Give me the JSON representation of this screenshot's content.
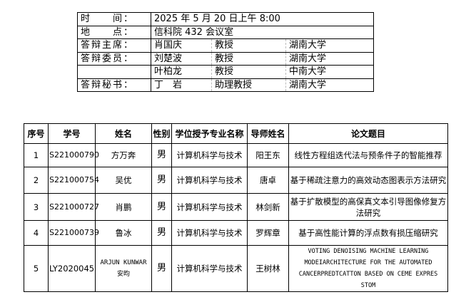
{
  "info": {
    "time_label": "时　　间：",
    "time_value": "2025 年 5 月 20 日上午 8:00",
    "place_label": "地　　点：",
    "place_value": "信科院 432 会议室",
    "chair_label": "答辩主席：",
    "committee_label": "答辩委员：",
    "secretary_label": "答辩秘书：",
    "people": [
      {
        "name": "肖国庆",
        "title": "教授",
        "org": "湖南大学"
      },
      {
        "name": "刘楚波",
        "title": "教授",
        "org": "湖南大学"
      },
      {
        "name": "叶柏龙",
        "title": "教授",
        "org": "中南大学"
      },
      {
        "name": "丁　岩",
        "title": "助理教授",
        "org": "湖南大学"
      }
    ]
  },
  "table": {
    "headers": [
      "序号",
      "学号",
      "姓名",
      "性别",
      "学位授予专业名称",
      "导师姓名",
      "论文题目"
    ],
    "rows": [
      [
        "1",
        "S221000790",
        "方万奔",
        "男",
        "计算机科学与技术",
        "阳王东",
        "线性方程组迭代法与预条件子的智能推荐"
      ],
      [
        "2",
        "S221000754",
        "吴优",
        "男",
        "计算机科学与技术",
        "唐卓",
        "基于稀疏注意力的高效动态图表示方法研究"
      ],
      [
        "3",
        "S221000727",
        "肖鹏",
        "男",
        "计算机科学与技术",
        "林剑新",
        "基于扩散模型的高保真文本引导图像修复方法研究"
      ],
      [
        "4",
        "S221000739",
        "鲁冰",
        "男",
        "计算机科学与技术",
        "罗辉章",
        "基于高性能计算的浮点数有损压缩研究"
      ],
      [
        "5",
        "LY2020045",
        "ARJUN KUNWAR 安昀",
        "男",
        "计算机科学与技术",
        "王树林",
        "VOTING DENOISING MACHINE LEARNING MODEIARCHITECTURE FOR THE AUTOMATED CANCERPREDTCATTON BASED ON CEME EXPRES STOM"
      ]
    ]
  }
}
